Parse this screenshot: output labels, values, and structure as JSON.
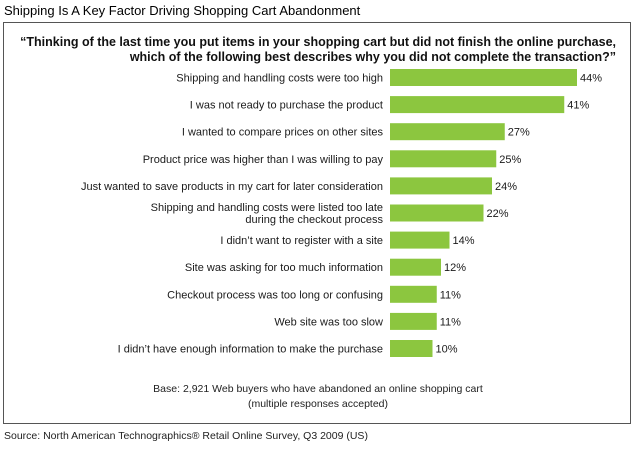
{
  "figure": {
    "title": "Shipping Is A Key Factor Driving Shopping Cart Abandonment",
    "question_line1": "“Thinking of the last time you put items in your shopping cart but did not finish the online purchase,",
    "question_line2": "which of the following best describes why you did not complete the transaction?”",
    "base_line1": "Base: 2,921 Web buyers who have abandoned an online shopping cart",
    "base_line2": "(multiple responses accepted)",
    "source": "Source: North American Technographics® Retail Online Survey, Q3 2009 (US)"
  },
  "colors": {
    "bar": "#8cc63f",
    "text": "#1a1a1a"
  },
  "chart_data": {
    "type": "bar",
    "orientation": "horizontal",
    "title": "Shipping Is A Key Factor Driving Shopping Cart Abandonment",
    "categories": [
      [
        "Shipping and handling costs were too high"
      ],
      [
        "I was not ready to purchase the product"
      ],
      [
        "I wanted to compare prices on other sites"
      ],
      [
        "Product price was higher than I was willing to pay"
      ],
      [
        "Just wanted to save products in my cart for later consideration"
      ],
      [
        "Shipping and handling costs were listed too late",
        "during the checkout process"
      ],
      [
        "I didn’t want to register with a site"
      ],
      [
        "Site was asking for too much information"
      ],
      [
        "Checkout process was too long or confusing"
      ],
      [
        "Web site was too slow"
      ],
      [
        "I didn’t have enough information to make the purchase"
      ]
    ],
    "values": [
      44,
      41,
      27,
      25,
      24,
      22,
      14,
      12,
      11,
      11,
      10
    ],
    "value_labels": [
      "44%",
      "41%",
      "27%",
      "25%",
      "24%",
      "22%",
      "14%",
      "12%",
      "11%",
      "11%",
      "10%"
    ],
    "xlim": [
      0,
      44
    ],
    "grid": false,
    "legend": "none"
  }
}
